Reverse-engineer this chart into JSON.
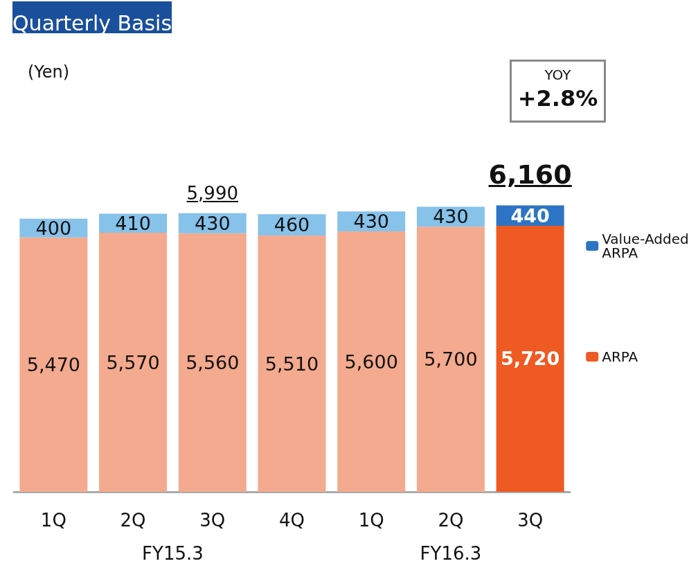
{
  "chart_data": {
    "type": "bar",
    "title": "Quarterly Basis",
    "categories": [
      "1Q",
      "2Q",
      "3Q",
      "4Q",
      "1Q",
      "2Q",
      "3Q"
    ],
    "stacked": true,
    "tick_labels": "x",
    "legend": "right",
    "series": [
      {
        "name": "ARPA",
        "colors": [
          "#f4aa8e",
          "#f4aa8e",
          "#f4aa8e",
          "#f4aa8e",
          "#f4aa8e",
          "#f4aa8e",
          "#ee5a22"
        ],
        "values": [
          5470,
          5570,
          5560,
          5510,
          5600,
          5700,
          5720
        ],
        "value_labels": [
          "5,470",
          "5,570",
          "5,560",
          "5,510",
          "5,600",
          "5,700",
          "5,720"
        ]
      },
      {
        "name": "Value-Added ARPA",
        "colors": [
          "#86c2ea",
          "#86c2ea",
          "#86c2ea",
          "#86c2ea",
          "#86c2ea",
          "#86c2ea",
          "#2d74c4"
        ],
        "values": [
          400,
          410,
          430,
          460,
          430,
          430,
          440
        ],
        "value_labels": [
          "400",
          "410",
          "430",
          "460",
          "430",
          "430",
          "440"
        ]
      }
    ],
    "totals": [
      null,
      null,
      "5,990",
      null,
      null,
      null,
      "6,160"
    ],
    "annotations": [
      "(Yen)",
      "YOY +2.8%",
      "FY15.3",
      "FY16.3"
    ]
  }
}
